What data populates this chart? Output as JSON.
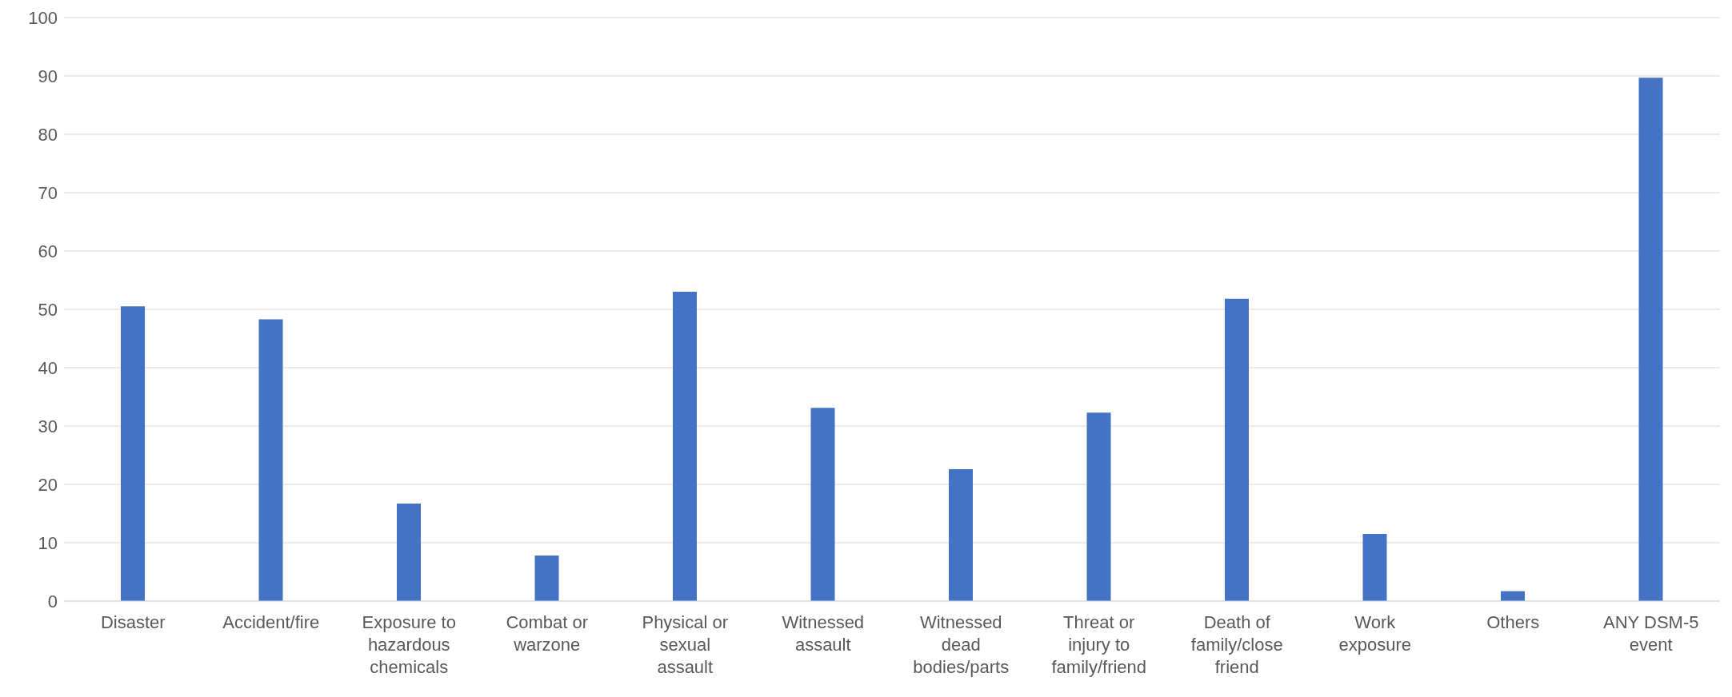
{
  "chart_data": {
    "type": "bar",
    "categories": [
      "Disaster",
      "Accident/fire",
      "Exposure to hazardous chemicals",
      "Combat or warzone",
      "Physical or sexual assault",
      "Witnessed assault",
      "Witnessed dead bodies/parts",
      "Threat or injury to family/friend",
      "Death of family/close friend",
      "Work exposure",
      "Others",
      "ANY DSM-5 event"
    ],
    "values": [
      50.5,
      48.3,
      16.7,
      7.8,
      53.0,
      33.1,
      22.6,
      32.3,
      51.8,
      11.5,
      1.7,
      89.7
    ],
    "color": "#4472c4",
    "ylim": [
      0,
      100
    ],
    "yticks": [
      0,
      10,
      20,
      30,
      40,
      50,
      60,
      70,
      80,
      90,
      100
    ],
    "grid": "y",
    "legend": false
  }
}
